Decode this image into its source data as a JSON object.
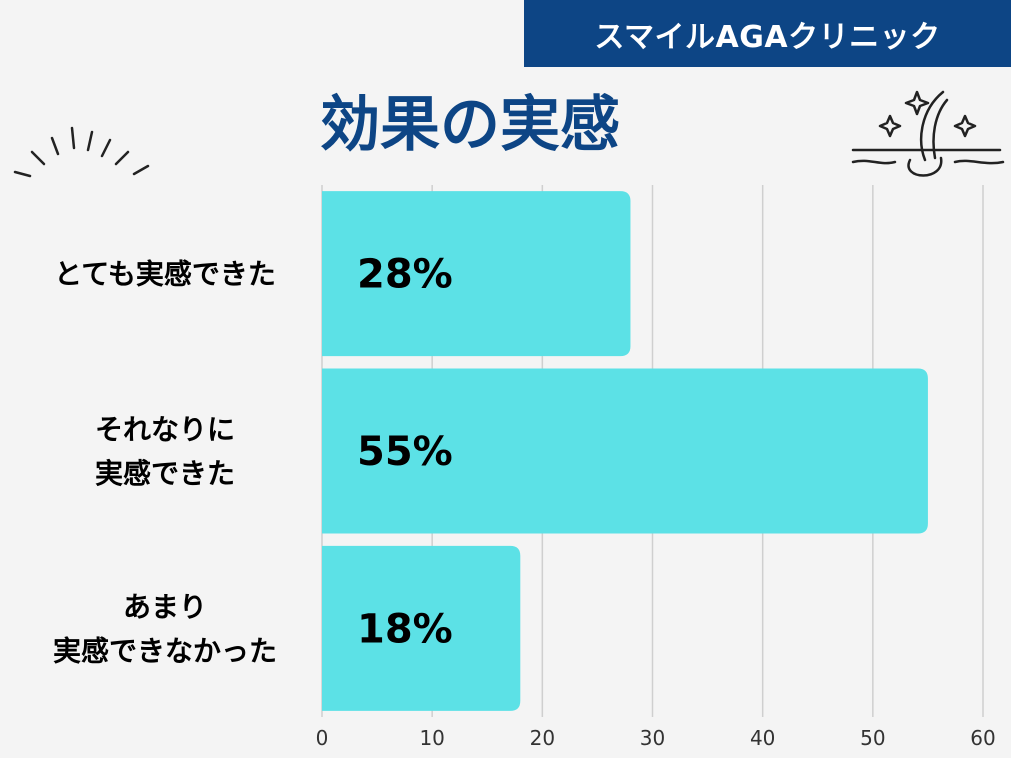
{
  "brand": {
    "name": "スマイルAGAクリニック"
  },
  "colors": {
    "brand": "#0d4585",
    "bar": "#5ce1e6",
    "grid": "#cfcfcf",
    "text": "#000000"
  },
  "chart_data": {
    "type": "bar",
    "orientation": "horizontal",
    "title": "効果の実感",
    "categories": [
      [
        "とても実感できた"
      ],
      [
        "それなりに",
        "実感できた"
      ],
      [
        "あまり",
        "実感できなかった"
      ]
    ],
    "values": [
      28,
      55,
      18
    ],
    "value_labels": [
      "28%",
      "55%",
      "18%"
    ],
    "xlim": [
      0,
      60
    ],
    "xticks": [
      0,
      10,
      20,
      30,
      40,
      50,
      60
    ],
    "xtick_labels": [
      "0",
      "10",
      "20",
      "30",
      "40",
      "50",
      "60"
    ],
    "grid": true
  }
}
